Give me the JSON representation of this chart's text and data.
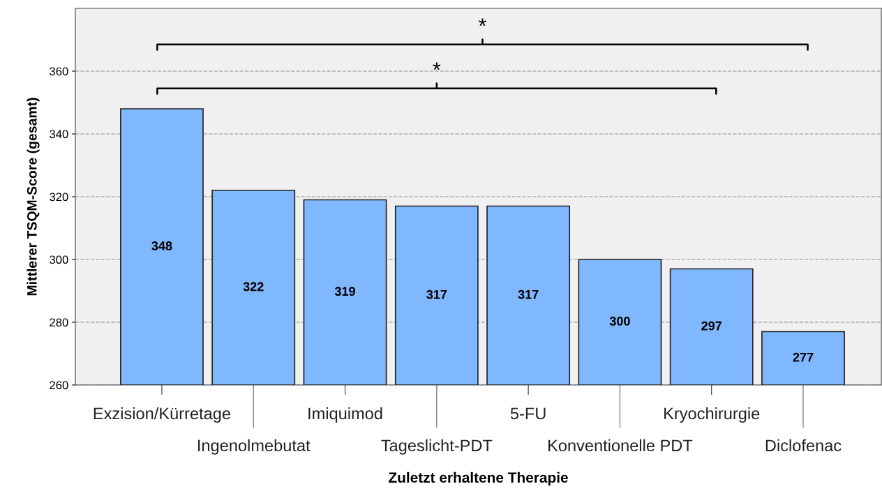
{
  "chart_data": {
    "type": "bar",
    "xlabel": "Zuletzt erhaltene Therapie",
    "ylabel": "Mittlerer TSQM-Score (gesamt)",
    "categories": [
      "Exzision/Kürretage",
      "Ingenolmebutat",
      "Imiquimod",
      "Tageslicht-PDT",
      "5-FU",
      "Konventionelle PDT",
      "Kryochirurgie",
      "Diclofenac"
    ],
    "values": [
      348,
      322,
      319,
      317,
      317,
      300,
      297,
      277
    ],
    "color": "#80b8ff",
    "ylim": [
      260,
      380
    ],
    "yticks": [
      260,
      280,
      300,
      320,
      340,
      360
    ],
    "grid": "y",
    "data_labels": true,
    "annotations": [
      "*",
      "*"
    ]
  }
}
